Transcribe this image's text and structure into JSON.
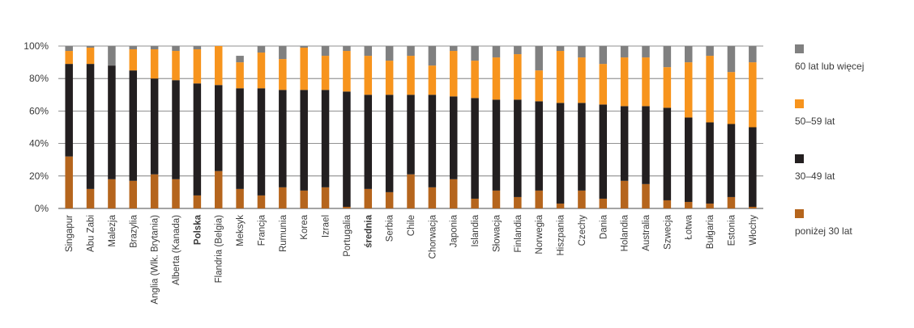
{
  "chart_data": {
    "type": "bar",
    "stacked": true,
    "categories": [
      "Singapur",
      "Abu Zabi",
      "Malezja",
      "Brazylia",
      "Anglia (Wlk. Brytania)",
      "Alberta (Kanada)",
      "Polska",
      "Flandria (Belgia)",
      "Meksyk",
      "Francja",
      "Rumunia",
      "Korea",
      "Izrael",
      "Portugalia",
      "średnia",
      "Serbia",
      "Chile",
      "Chorwacja",
      "Japonia",
      "Islandia",
      "Słowacja",
      "Finlandia",
      "Norwegia",
      "Hiszpania",
      "Czechy",
      "Dania",
      "Holandia",
      "Australia",
      "Szwecja",
      "Łotwa",
      "Bułgaria",
      "Estonia",
      "Włochy"
    ],
    "bold_categories": [
      "Polska",
      "średnia"
    ],
    "series": [
      {
        "name": "poniżej 30 lat",
        "color": "#b5651d",
        "values": [
          32,
          12,
          18,
          17,
          21,
          18,
          8,
          23,
          12,
          8,
          13,
          11,
          13,
          1,
          12,
          10,
          21,
          13,
          18,
          6,
          11,
          7,
          11,
          3,
          11,
          6,
          17,
          15,
          5,
          4,
          3,
          7,
          1
        ]
      },
      {
        "name": "30–49 lat",
        "color": "#231f20",
        "values": [
          57,
          77,
          70,
          68,
          59,
          61,
          69,
          53,
          62,
          66,
          60,
          62,
          60,
          71,
          58,
          60,
          49,
          57,
          51,
          62,
          56,
          60,
          55,
          62,
          54,
          58,
          46,
          48,
          57,
          52,
          50,
          45,
          49
        ]
      },
      {
        "name": "50–59 lat",
        "color": "#f7941d",
        "values": [
          8,
          10,
          0,
          13,
          18,
          18,
          21,
          24,
          16,
          22,
          19,
          26,
          21,
          25,
          24,
          21,
          24,
          18,
          28,
          23,
          26,
          28,
          19,
          32,
          28,
          25,
          30,
          30,
          25,
          34,
          41,
          32,
          40
        ]
      },
      {
        "name": "60 lat lub więcej",
        "color": "#808080",
        "values": [
          3,
          1,
          12,
          2,
          2,
          3,
          2,
          0,
          4,
          4,
          8,
          1,
          6,
          3,
          6,
          9,
          6,
          12,
          3,
          9,
          7,
          5,
          15,
          3,
          7,
          11,
          7,
          7,
          13,
          10,
          6,
          16,
          10
        ]
      }
    ],
    "legend_order": [
      "60 lat lub więcej",
      "50–59 lat",
      "30–49 lat",
      "poniżej 30 lat"
    ],
    "yticks": [
      "0%",
      "20%",
      "40%",
      "60%",
      "80%",
      "100%"
    ],
    "ylim": [
      0,
      100
    ],
    "grid": true,
    "legend_position": "right"
  }
}
